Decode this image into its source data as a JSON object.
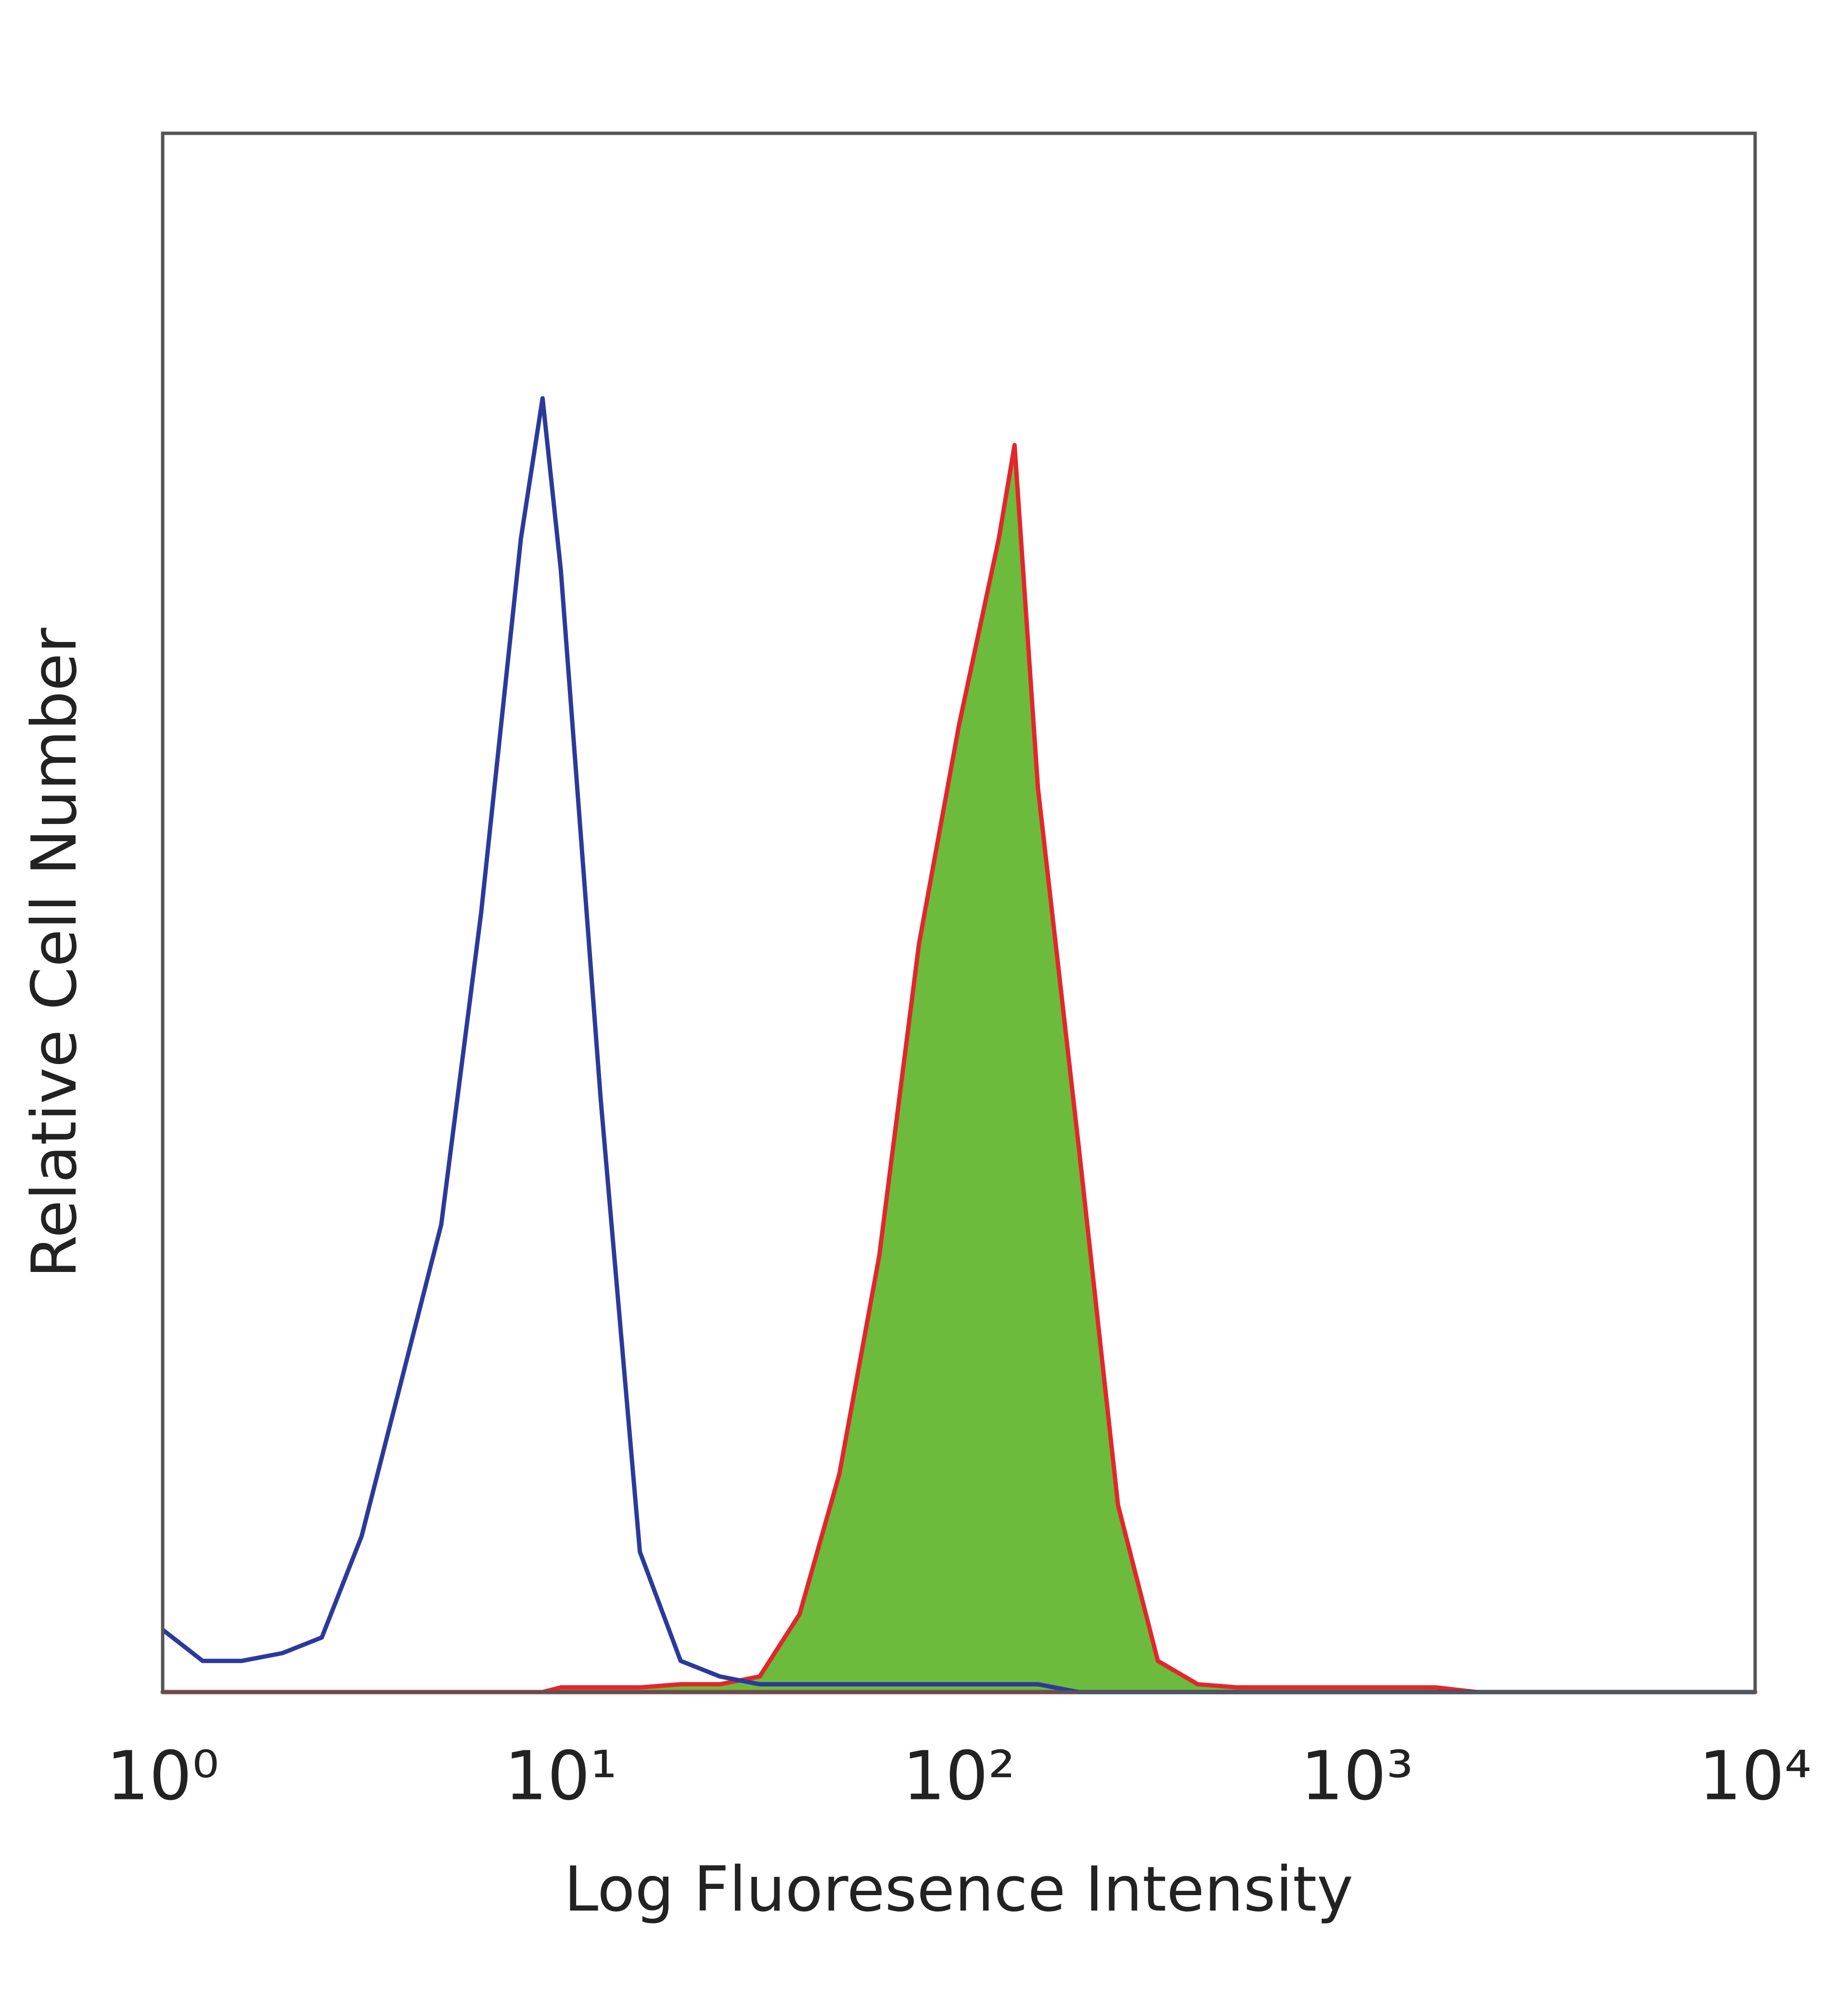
{
  "chart_data": {
    "type": "histogram-overlay",
    "xlabel": "Log Fluoresence Intensity",
    "ylabel": "Relative Cell Number",
    "xscale": "log",
    "xlim": [
      1,
      10000
    ],
    "ylim": [
      0,
      100
    ],
    "xticks": [
      {
        "value": 1,
        "label": "10⁰"
      },
      {
        "value": 10,
        "label": "10¹"
      },
      {
        "value": 100,
        "label": "10²"
      },
      {
        "value": 1000,
        "label": "10³"
      },
      {
        "value": 10000,
        "label": "10⁴"
      }
    ],
    "grid": false,
    "x": [
      1,
      1.26,
      1.58,
      2,
      2.51,
      3.16,
      3.98,
      5.01,
      6.31,
      7.94,
      9,
      10,
      12.6,
      15.8,
      20,
      25.1,
      31.6,
      39.8,
      50.1,
      63.1,
      79.4,
      100,
      126,
      138,
      158,
      200,
      251,
      316,
      398,
      501,
      631,
      794,
      1000,
      1260,
      1580,
      2000,
      2510,
      3160,
      3980,
      5010,
      6310,
      7940,
      10000
    ],
    "series": [
      {
        "color": "#6cbb3c",
        "edgecolor": "#e3262b",
        "filled": true,
        "values": [
          0,
          0,
          0,
          0,
          0,
          0,
          0,
          0,
          0,
          0,
          0,
          0.3,
          0.3,
          0.3,
          0.5,
          0.5,
          1,
          5,
          14,
          28,
          48,
          62,
          74,
          80,
          58,
          35,
          12,
          2,
          0.5,
          0.3,
          0.3,
          0.3,
          0.3,
          0.3,
          0.3,
          0,
          0,
          0,
          0,
          0,
          0,
          0,
          0
        ]
      },
      {
        "color": "#2b3a9a",
        "filled": false,
        "values": [
          4,
          2,
          2,
          2.5,
          3.5,
          10,
          20,
          30,
          50,
          74,
          83,
          72,
          38,
          9,
          2,
          1,
          0.5,
          0.5,
          0.5,
          0.5,
          0.5,
          0.5,
          0.5,
          0.5,
          0.5,
          0,
          0,
          0,
          0,
          0,
          0,
          0,
          0,
          0,
          0,
          0,
          0,
          0,
          0,
          0,
          0,
          0,
          0
        ]
      }
    ]
  }
}
